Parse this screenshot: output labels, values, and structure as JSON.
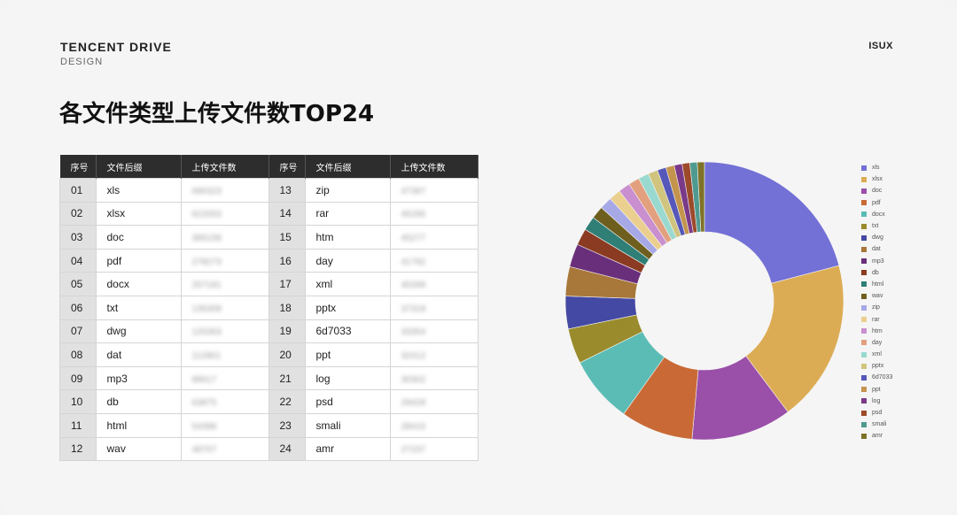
{
  "brand": {
    "title": "TENCENT DRIVE",
    "subtitle": "DESIGN",
    "corner": "ISUX"
  },
  "page_title": "各文件类型上传文件数TOP24",
  "table": {
    "headers": [
      "序号",
      "文件后缀",
      "上传文件数",
      "序号",
      "文件后缀",
      "上传文件数"
    ],
    "rows": [
      {
        "idx": "01",
        "ext": "xls",
        "cnt": "690323"
      },
      {
        "idx": "02",
        "ext": "xlsx",
        "cnt": "622053"
      },
      {
        "idx": "03",
        "ext": "doc",
        "cnt": "385158"
      },
      {
        "idx": "04",
        "ext": "pdf",
        "cnt": "278273"
      },
      {
        "idx": "05",
        "ext": "docx",
        "cnt": "257181"
      },
      {
        "idx": "06",
        "ext": "txt",
        "cnt": "135309"
      },
      {
        "idx": "07",
        "ext": "dwg",
        "cnt": "125363"
      },
      {
        "idx": "08",
        "ext": "dat",
        "cnt": "112801"
      },
      {
        "idx": "09",
        "ext": "mp3",
        "cnt": "88617"
      },
      {
        "idx": "10",
        "ext": "db",
        "cnt": "63875"
      },
      {
        "idx": "11",
        "ext": "html",
        "cnt": "54398"
      },
      {
        "idx": "12",
        "ext": "wav",
        "cnt": "48707"
      },
      {
        "idx": "13",
        "ext": "zip",
        "cnt": "47397"
      },
      {
        "idx": "14",
        "ext": "rar",
        "cnt": "45295"
      },
      {
        "idx": "15",
        "ext": "htm",
        "cnt": "45277"
      },
      {
        "idx": "16",
        "ext": "day",
        "cnt": "41792"
      },
      {
        "idx": "17",
        "ext": "xml",
        "cnt": "40299"
      },
      {
        "idx": "18",
        "ext": "pptx",
        "cnt": "37318"
      },
      {
        "idx": "19",
        "ext": "6d7033",
        "cnt": "33354"
      },
      {
        "idx": "20",
        "ext": "ppt",
        "cnt": "32412"
      },
      {
        "idx": "21",
        "ext": "log",
        "cnt": "30302"
      },
      {
        "idx": "22",
        "ext": "psd",
        "cnt": "29428"
      },
      {
        "idx": "23",
        "ext": "smali",
        "cnt": "28415"
      },
      {
        "idx": "24",
        "ext": "amr",
        "cnt": "27237"
      }
    ]
  },
  "chart_data": {
    "type": "pie",
    "donut": true,
    "legend_position": "right",
    "labels": [
      "xls",
      "xlsx",
      "doc",
      "pdf",
      "docx",
      "txt",
      "dwg",
      "dat",
      "mp3",
      "db",
      "html",
      "wav",
      "zip",
      "rar",
      "htm",
      "day",
      "xml",
      "pptx",
      "6d7033",
      "ppt",
      "log",
      "psd",
      "smali",
      "amr"
    ],
    "values": [
      690323,
      622053,
      385158,
      278273,
      257181,
      135309,
      125363,
      112801,
      88617,
      63875,
      54398,
      48707,
      47397,
      45295,
      45277,
      41792,
      40299,
      37318,
      33354,
      32412,
      30302,
      29428,
      28415,
      27237
    ],
    "colors": [
      "#7370d6",
      "#dcac55",
      "#9a4fa9",
      "#c96a36",
      "#5bbcb5",
      "#9a8b2c",
      "#4449a3",
      "#a8773a",
      "#6a2f7b",
      "#8b3b21",
      "#2f7f76",
      "#6e5f1f",
      "#a7a8e6",
      "#ebcf8f",
      "#c98fcf",
      "#e2a07f",
      "#9ad9cf",
      "#d0c47e",
      "#5558b8",
      "#c4944c",
      "#7a3a88",
      "#9c4a2a",
      "#4f9a90",
      "#7f7228"
    ]
  }
}
